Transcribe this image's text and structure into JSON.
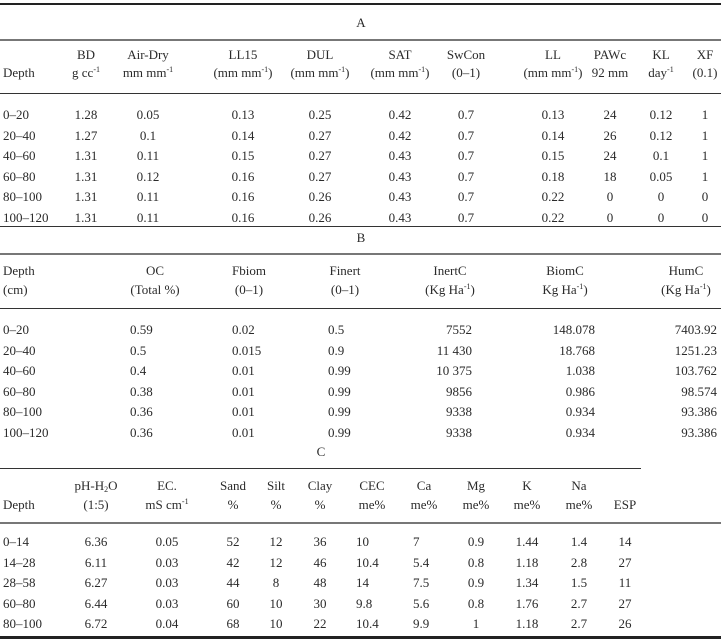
{
  "tableA": {
    "title": "A",
    "headers": [
      {
        "l1": "",
        "l2": "Depth"
      },
      {
        "l1": "BD",
        "l2": "g cc",
        "sup": "-1"
      },
      {
        "l1": "Air-Dry",
        "l2": "mm mm",
        "sup": "-1"
      },
      {
        "l1": "LL15",
        "l2": "(mm mm",
        "sup": "-1",
        "post": ")"
      },
      {
        "l1": "DUL",
        "l2": "(mm mm",
        "sup": "-1",
        "post": ")"
      },
      {
        "l1": "SAT",
        "l2": "(mm mm",
        "sup": "-1",
        "post": ")"
      },
      {
        "l1": "SwCon",
        "l2": "(0–1)"
      },
      {
        "l1": "LL",
        "l2": "(mm mm",
        "sup": "-1",
        "post": ")"
      },
      {
        "l1": "PAWc",
        "l2": "92 mm"
      },
      {
        "l1": "KL",
        "l2": "day",
        "sup": "-1"
      },
      {
        "l1": "XF",
        "l2": "(0.1)"
      }
    ],
    "rows": [
      [
        "0–20",
        "1.28",
        "0.05",
        "0.13",
        "0.25",
        "0.42",
        "0.7",
        "0.13",
        "24",
        "0.12",
        "1"
      ],
      [
        "20–40",
        "1.27",
        "0.1",
        "0.14",
        "0.27",
        "0.42",
        "0.7",
        "0.14",
        "26",
        "0.12",
        "1"
      ],
      [
        "40–60",
        "1.31",
        "0.11",
        "0.15",
        "0.27",
        "0.43",
        "0.7",
        "0.15",
        "24",
        "0.1",
        "1"
      ],
      [
        "60–80",
        "1.31",
        "0.12",
        "0.16",
        "0.27",
        "0.43",
        "0.7",
        "0.18",
        "18",
        "0.05",
        "1"
      ],
      [
        "80–100",
        "1.31",
        "0.11",
        "0.16",
        "0.26",
        "0.43",
        "0.7",
        "0.22",
        "0",
        "0",
        "0"
      ],
      [
        "100–120",
        "1.31",
        "0.11",
        "0.16",
        "0.26",
        "0.43",
        "0.7",
        "0.22",
        "0",
        "0",
        "0"
      ]
    ]
  },
  "tableB": {
    "title": "B",
    "headers": [
      {
        "l1": "Depth",
        "l2": "(cm)"
      },
      {
        "l1": "OC",
        "l2": "(Total %)"
      },
      {
        "l1": "Fbiom",
        "l2": "(0–1)"
      },
      {
        "l1": "Finert",
        "l2": "(0–1)"
      },
      {
        "l1": "InertC",
        "l2": "(Kg Ha",
        "sup": "-1",
        "post": ")"
      },
      {
        "l1": "BiomC",
        "l2": "Kg Ha",
        "sup": "-1",
        "post": ")"
      },
      {
        "l1": "HumC",
        "l2": "(Kg Ha",
        "sup": "-1",
        "post": ")"
      }
    ],
    "rows": [
      [
        "0–20",
        "0.59",
        "0.02",
        "0.5",
        "7552",
        "148.078",
        "7403.92"
      ],
      [
        "20–40",
        "0.5",
        "0.015",
        "0.9",
        "11 430",
        "18.768",
        "1251.23"
      ],
      [
        "40–60",
        "0.4",
        "0.01",
        "0.99",
        "10 375",
        "1.038",
        "103.762"
      ],
      [
        "60–80",
        "0.38",
        "0.01",
        "0.99",
        "9856",
        "0.986",
        "98.574"
      ],
      [
        "80–100",
        "0.36",
        "0.01",
        "0.99",
        "9338",
        "0.934",
        "93.386"
      ],
      [
        "100–120",
        "0.36",
        "0.01",
        "0.99",
        "9338",
        "0.934",
        "93.386"
      ]
    ]
  },
  "tableC": {
    "title": "C",
    "headers": [
      {
        "l1": "",
        "l2": "Depth"
      },
      {
        "l1": "pH-H",
        "sub": "2",
        "l1post": "O",
        "l2": "(1:5)"
      },
      {
        "l1": "EC.",
        "l2": "mS cm",
        "sup": "-1"
      },
      {
        "l1": "Sand",
        "l2": "%"
      },
      {
        "l1": "Silt",
        "l2": "%"
      },
      {
        "l1": "Clay",
        "l2": "%"
      },
      {
        "l1": "CEC",
        "l2": "me%"
      },
      {
        "l1": "Ca",
        "l2": "me%"
      },
      {
        "l1": "Mg",
        "l2": "me%"
      },
      {
        "l1": "K",
        "l2": "me%"
      },
      {
        "l1": "Na",
        "l2": "me%"
      },
      {
        "l1": "",
        "l2": "ESP"
      }
    ],
    "rows": [
      [
        "0–14",
        "6.36",
        "0.05",
        "52",
        "12",
        "36",
        "10",
        "7",
        "0.9",
        "1.44",
        "1.4",
        "14"
      ],
      [
        "14–28",
        "6.11",
        "0.03",
        "42",
        "12",
        "46",
        "10.4",
        "5.4",
        "0.8",
        "1.18",
        "2.8",
        "27"
      ],
      [
        "28–58",
        "6.27",
        "0.03",
        "44",
        "8",
        "48",
        "14",
        "7.5",
        "0.9",
        "1.34",
        "1.5",
        "11"
      ],
      [
        "60–80",
        "6.44",
        "0.03",
        "60",
        "10",
        "30",
        "9.8",
        "5.6",
        "0.8",
        "1.76",
        "2.7",
        "27"
      ],
      [
        "80–100",
        "6.72",
        "0.04",
        "68",
        "10",
        "22",
        "10.4",
        "9.9",
        "1",
        "1.18",
        "2.7",
        "26"
      ]
    ]
  }
}
